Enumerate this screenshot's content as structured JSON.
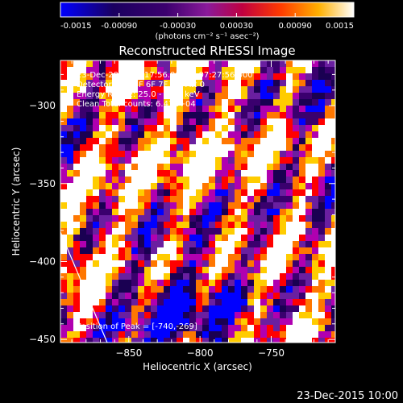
{
  "chart_data": {
    "type": "heatmap",
    "title": "Reconstructed RHESSI Image",
    "xlabel": "Heliocentric X (arcsec)",
    "ylabel": "Heliocentric Y (arcsec)",
    "xlim": [
      -898,
      -705
    ],
    "ylim": [
      -452,
      -271
    ],
    "xticks": [
      -850,
      -800,
      -750
    ],
    "yticks": [
      -450,
      -400,
      -350,
      -300
    ],
    "colorbar": {
      "range": [
        -0.0015,
        0.0015
      ],
      "ticks": [
        "-0.0015",
        "-0.00090",
        "-0.00030",
        "0.00030",
        "0.00090",
        "0.0015"
      ],
      "unit_label": "(photons cm⁻² s⁻¹ asec⁻²)",
      "colormap": [
        "#0000ff",
        "#1a0052",
        "#3a006e",
        "#6a1fa0",
        "#b000b0",
        "#ff0000",
        "#ff7700",
        "#ffcc00",
        "#ffffff"
      ]
    },
    "annotations": [
      "23-Dec-2015 07:17:56.000 to 07:27:56.000",
      "Detectors: 3F 5F 6F 7F 8F, Att 0",
      "Energy Range: 25.0 - 50.0 keV",
      "Clean      Total counts: 6.43E+04"
    ],
    "peak_label": "Position of Peak = [-740,-269]",
    "grid": false
  },
  "footer": {
    "timestamp": "23-Dec-2015 10:00"
  }
}
